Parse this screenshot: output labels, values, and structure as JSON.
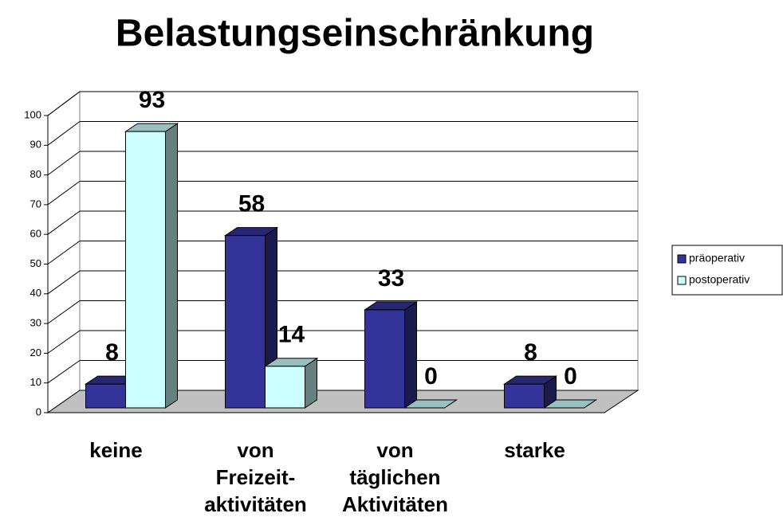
{
  "chart_data": {
    "type": "bar3d",
    "title": "Belastungseinschränkung",
    "categories": [
      "keine",
      "von\nFreizeit-\naktivitäten",
      "von\ntäglichen\nAktivitäten",
      "starke"
    ],
    "series": [
      {
        "name": "präoperativ",
        "color": "#333399",
        "values": [
          8,
          58,
          33,
          8
        ]
      },
      {
        "name": "postoperativ",
        "color": "#ccffff",
        "values": [
          93,
          14,
          0,
          0
        ]
      }
    ],
    "ylim": [
      0,
      100
    ],
    "yticks": [
      0,
      10,
      20,
      30,
      40,
      50,
      60,
      70,
      80,
      90,
      100
    ],
    "grid": true,
    "legend": "right"
  }
}
